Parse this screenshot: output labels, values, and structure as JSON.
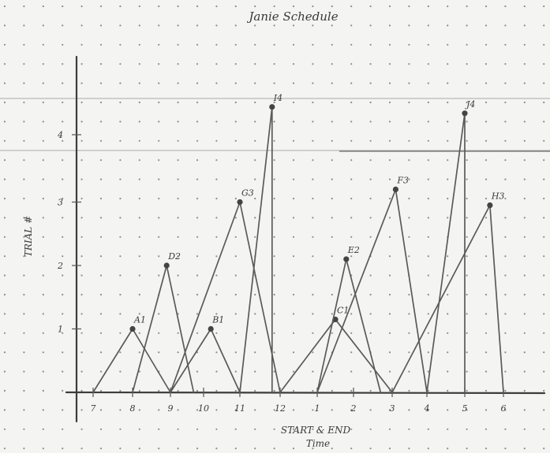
{
  "chart_data": {
    "type": "line",
    "title": "Janie Schedule",
    "xlabel": "START & END Time",
    "ylabel": "TRIAL #",
    "x_ticks": [
      "7",
      "8",
      "9",
      "10",
      "11",
      "12",
      "1",
      "2",
      "3",
      "4",
      "5",
      "6"
    ],
    "y_ticks": [
      "1",
      "2",
      "3",
      "4"
    ],
    "xlim": [
      6.6,
      18.3
    ],
    "ylim": [
      0,
      4.6
    ],
    "grid": "dotted",
    "legend": "none",
    "series": [
      {
        "name": "A1",
        "start": 7,
        "peak_x": 8,
        "peak_y": 1,
        "end": 9
      },
      {
        "name": "D2",
        "start": 8,
        "peak_x": 8.9,
        "peak_y": 2,
        "end": 9.7
      },
      {
        "name": "B1",
        "start": 9,
        "peak_x": 10.2,
        "peak_y": 1,
        "end": 11
      },
      {
        "name": "G3",
        "start": 9,
        "peak_x": 11,
        "peak_y": 3,
        "end": 12
      },
      {
        "name": "I4",
        "start": 11,
        "peak_x": 11.8,
        "peak_y": 4.5,
        "end": 11.8
      },
      {
        "name": "C1",
        "start": 12,
        "peak_x": 13.5,
        "peak_y": 1.15,
        "end": 15
      },
      {
        "name": "E2",
        "start": 13,
        "peak_x": 13.8,
        "peak_y": 2.1,
        "end": 14.7
      },
      {
        "name": "F3",
        "start": 13,
        "peak_x": 15.1,
        "peak_y": 3.2,
        "end": 16
      },
      {
        "name": "J4",
        "start": 16,
        "peak_x": 17,
        "peak_y": 4.4,
        "end": 17
      },
      {
        "name": "H3",
        "start": 15,
        "peak_x": 17.65,
        "peak_y": 2.95,
        "end": 18
      }
    ]
  }
}
